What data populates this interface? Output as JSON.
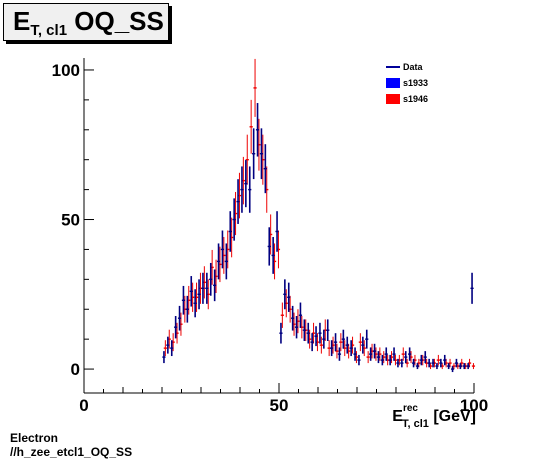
{
  "title": {
    "main": "E",
    "sub": "T, cl1",
    "rest": " OQ_SS"
  },
  "footer": {
    "line1": "Electron",
    "line2": "//h_zee_etcl1_OQ_SS"
  },
  "xaxis_title": {
    "main": "E",
    "sup": "rec",
    "sub": "T, cl1",
    "unit": " [GeV]"
  },
  "legend": [
    {
      "label": "Data",
      "kind": "line",
      "color": "#000099"
    },
    {
      "label": "s1933",
      "kind": "box",
      "color": "#0000ff"
    },
    {
      "label": "s1946",
      "kind": "box",
      "color": "#ff0000"
    }
  ],
  "colors": {
    "data": "#000080",
    "s1946": "#ee0000"
  },
  "chart_data": {
    "type": "scatter",
    "xlim": [
      0,
      100
    ],
    "ylim": [
      -8,
      104
    ],
    "xticks": [
      0,
      50,
      100
    ],
    "yticks": [
      0,
      50,
      100
    ],
    "grid": false,
    "legend_position": "top-right",
    "series": [
      {
        "name": "Data",
        "x": [
          20.5,
          21.5,
          22.5,
          23.5,
          24.5,
          25.5,
          26.5,
          27.5,
          28.5,
          29.5,
          30.5,
          31.5,
          32.5,
          33.5,
          34.5,
          35.5,
          36.5,
          37.5,
          38.5,
          39.5,
          40.5,
          41.5,
          42.5,
          43.5,
          44.5,
          45.5,
          46.5,
          47.5,
          48.5,
          49.5,
          50.5,
          51.5,
          52.5,
          53.5,
          54.5,
          55.5,
          56.5,
          57.5,
          58.5,
          59.5,
          60.5,
          61.5,
          62.5,
          63.5,
          64.5,
          65.5,
          66.5,
          67.5,
          68.5,
          69.5,
          70.5,
          71.5,
          72.5,
          73.5,
          74.5,
          75.5,
          76.5,
          77.5,
          78.5,
          79.5,
          80.5,
          81.5,
          82.5,
          83.5,
          84.5,
          85.5,
          86.5,
          87.5,
          88.5,
          89.5,
          90.5,
          91.5,
          92.5,
          93.5,
          94.5,
          95.5,
          96.5,
          97.5,
          98.5,
          99.5
        ],
        "y": [
          4,
          8,
          7,
          14,
          17,
          23,
          20,
          26,
          22,
          25,
          27,
          27,
          30,
          28,
          36,
          40,
          36,
          46,
          50,
          56,
          60,
          62,
          60,
          72,
          80,
          72,
          67,
          41,
          38,
          46,
          12,
          25,
          24,
          17,
          14,
          18,
          13,
          12,
          9,
          11,
          12,
          10,
          13,
          7,
          9,
          5,
          10,
          8,
          7,
          5,
          3,
          8,
          10,
          5,
          6,
          4,
          3,
          5,
          3,
          5,
          2,
          2,
          4,
          5,
          2,
          1,
          3,
          4,
          2,
          2,
          1,
          2,
          3,
          1,
          0,
          2,
          1,
          1,
          1,
          27
        ]
      },
      {
        "name": "s1946",
        "x": [
          20.5,
          21.5,
          22.5,
          23.5,
          24.5,
          25.5,
          26.5,
          27.5,
          28.5,
          29.5,
          30.5,
          31.5,
          32.5,
          33.5,
          34.5,
          35.5,
          36.5,
          37.5,
          38.5,
          39.5,
          40.5,
          41.5,
          42.5,
          43.5,
          44.5,
          45.5,
          46.5,
          47.5,
          48.5,
          49.5,
          50.5,
          51.5,
          52.5,
          53.5,
          54.5,
          55.5,
          56.5,
          57.5,
          58.5,
          59.5,
          60.5,
          61.5,
          62.5,
          63.5,
          64.5,
          65.5,
          66.5,
          67.5,
          68.5,
          69.5,
          70.5,
          71.5,
          72.5,
          73.5,
          74.5,
          75.5,
          76.5,
          77.5,
          78.5,
          79.5,
          80.5,
          81.5,
          82.5,
          83.5,
          84.5,
          85.5,
          86.5,
          87.5,
          88.5,
          89.5,
          90.5,
          91.5,
          92.5,
          93.5,
          94.5,
          95.5,
          96.5,
          97.5,
          98.5,
          99.5
        ],
        "y": [
          7,
          10,
          9,
          12,
          15,
          20,
          23,
          24,
          24,
          27,
          29,
          25,
          34,
          31,
          35,
          38,
          40,
          44,
          52,
          58,
          63,
          70,
          81,
          94,
          75,
          70,
          60,
          45,
          36,
          40,
          18,
          22,
          20,
          15,
          16,
          14,
          13,
          10,
          12,
          9,
          8,
          13,
          7,
          8,
          6,
          9,
          7,
          6,
          8,
          4,
          9,
          7,
          4,
          6,
          5,
          5,
          4,
          3,
          4,
          3,
          3,
          5,
          2,
          4,
          3,
          2,
          3,
          2,
          1,
          2,
          3,
          1,
          2,
          2,
          1,
          1,
          2,
          1,
          2,
          1
        ]
      }
    ]
  }
}
